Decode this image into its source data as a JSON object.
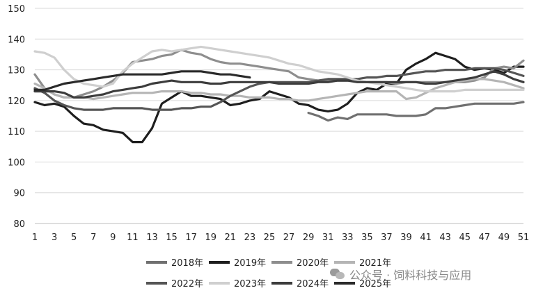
{
  "chart_data": {
    "type": "line",
    "ylim": [
      80,
      150
    ],
    "yticks": [
      80,
      90,
      100,
      110,
      120,
      130,
      140,
      150
    ],
    "xlim": [
      1,
      51
    ],
    "xticks": [
      1,
      3,
      5,
      7,
      9,
      11,
      13,
      15,
      17,
      19,
      21,
      23,
      25,
      27,
      29,
      31,
      33,
      35,
      37,
      39,
      41,
      43,
      45,
      47,
      49,
      51
    ],
    "grid": "horizontal",
    "legend_position": "bottom",
    "series": [
      {
        "name": "2018年",
        "color": "#707070",
        "start": 29,
        "values": [
          116,
          115,
          113.5,
          114.5,
          114,
          115.5,
          115.5,
          115.5,
          115.5,
          115,
          115,
          115,
          115.5,
          117.5,
          117.5,
          118,
          118.5,
          119,
          119,
          119,
          119,
          119,
          119.5
        ]
      },
      {
        "name": "2019年",
        "color": "#1e1e1e",
        "start": 1,
        "values": [
          119.5,
          118.5,
          119,
          118,
          115,
          112.5,
          112,
          110.5,
          110,
          109.5,
          106.5,
          106.5,
          111,
          119,
          121,
          123,
          121.5,
          121.5,
          121,
          120.5,
          118.5,
          119,
          120,
          120.5,
          123,
          122,
          121,
          119,
          118.5,
          117,
          116.5,
          117,
          119,
          122.5,
          124,
          123.5,
          125.5,
          125.5,
          130,
          132,
          133.5,
          135.5,
          134.5,
          133.5,
          131,
          130,
          130.5,
          130,
          129,
          131,
          131
        ]
      },
      {
        "name": "2020年",
        "color": "#8e8e8e",
        "start": 1,
        "values": [
          128.5,
          124,
          122,
          121,
          121,
          122,
          123,
          124.5,
          126.5,
          129,
          132.5,
          133,
          133.5,
          134.5,
          135,
          136.5,
          135.5,
          135,
          133.5,
          132.5,
          132,
          132,
          131.5,
          131,
          130.5,
          130,
          129.5,
          127.5,
          127,
          126.5,
          126.5,
          126.5,
          126.5,
          126.5,
          126,
          126,
          126,
          125.5,
          126,
          126,
          126,
          126,
          126,
          126,
          126,
          126.5,
          127.5,
          130.5,
          131,
          130.5,
          133
        ]
      },
      {
        "name": "2021年",
        "color": "#b5b5b5",
        "start": 1,
        "values": [
          125.5,
          124,
          122,
          121,
          121,
          121,
          120.5,
          121,
          121.5,
          122,
          122.5,
          122.5,
          122.5,
          123,
          123,
          123,
          122.5,
          122.5,
          122,
          122,
          121.5,
          121.5,
          121,
          121,
          121,
          120.5,
          120.5,
          120,
          120,
          120.5,
          121,
          121.5,
          122,
          122.5,
          123,
          123,
          123,
          123,
          120.5,
          121,
          122.5,
          124,
          125,
          126,
          126.5,
          127,
          127,
          126.5,
          126,
          125,
          124
        ]
      },
      {
        "name": "2022年",
        "color": "#555555",
        "start": 1,
        "values": [
          124,
          122.5,
          120,
          118.5,
          117.5,
          117,
          117,
          117,
          117.5,
          117.5,
          117.5,
          117.5,
          117,
          117,
          117,
          117.5,
          117.5,
          118,
          118,
          119.5,
          121.5,
          123,
          124.5,
          125.5,
          126,
          126,
          126,
          126,
          126,
          126.5,
          127,
          127,
          127,
          127,
          127.5,
          127.5,
          128,
          128,
          128.5,
          129,
          129.5,
          129.5,
          130,
          130,
          130,
          130.5,
          130.5,
          130.5,
          130,
          129,
          128
        ]
      },
      {
        "name": "2023年",
        "color": "#cfcfcf",
        "start": 1,
        "values": [
          136,
          135.5,
          134,
          130,
          127,
          125.5,
          125,
          124.5,
          125.5,
          129.5,
          132,
          134,
          136,
          136.5,
          136,
          136.5,
          137,
          137.5,
          137,
          136.5,
          136,
          135.5,
          135,
          134.5,
          134,
          133,
          132,
          131.5,
          130.5,
          129.5,
          129,
          128.5,
          127.5,
          126.5,
          126,
          125.5,
          125,
          124.5,
          124,
          123.5,
          123,
          123,
          123,
          123,
          123.5,
          123.5,
          123.5,
          123.5,
          123.5,
          123.5,
          123.5
        ]
      },
      {
        "name": "2024年",
        "color": "#3c3c3c",
        "start": 1,
        "values": [
          123,
          123,
          123,
          122.5,
          121,
          121,
          121.5,
          122,
          123,
          123.5,
          124,
          124.5,
          125.5,
          126,
          126.5,
          126,
          126,
          126,
          125.5,
          125.5,
          126,
          126,
          126,
          126,
          126,
          125.5,
          125.5,
          125.5,
          125.5,
          126,
          126,
          126.5,
          126.5,
          126,
          126,
          126,
          126,
          126,
          126,
          126,
          125.5,
          125.5,
          126,
          126.5,
          127,
          127.5,
          128.5,
          129.5,
          128.5,
          127,
          126
        ]
      },
      {
        "name": "2025年",
        "color": "#2a2a2a",
        "start": 1,
        "values": [
          123.5,
          123.5,
          124.5,
          125.5,
          126,
          126.5,
          127,
          127.5,
          128,
          128.5,
          128.5,
          128.5,
          128.5,
          128.5,
          129,
          129.5,
          129.5,
          129.5,
          129,
          128.5,
          128.5,
          128,
          127.5
        ]
      }
    ]
  },
  "watermark": {
    "text": "公众号 · 饲料科技与应用"
  }
}
